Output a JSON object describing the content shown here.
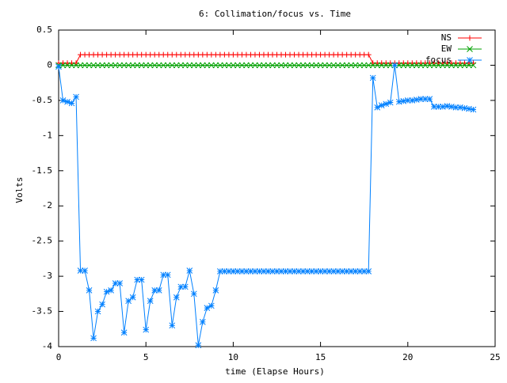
{
  "chart_data": {
    "type": "line",
    "title": "6: Collimation/focus vs. Time",
    "xlabel": "time (Elapse Hours)",
    "ylabel": "Volts",
    "x": [
      0,
      0.25,
      0.5,
      0.75,
      1,
      1.25,
      1.5,
      1.75,
      2,
      2.25,
      2.5,
      2.75,
      3,
      3.25,
      3.5,
      3.75,
      4,
      4.25,
      4.5,
      4.75,
      5,
      5.25,
      5.5,
      5.75,
      6,
      6.25,
      6.5,
      6.75,
      7,
      7.25,
      7.5,
      7.75,
      8,
      8.25,
      8.5,
      8.75,
      9,
      9.25,
      9.5,
      9.75,
      10,
      10.25,
      10.5,
      10.75,
      11,
      11.25,
      11.5,
      11.75,
      12,
      12.25,
      12.5,
      12.75,
      13,
      13.25,
      13.5,
      13.75,
      14,
      14.25,
      14.5,
      14.75,
      15,
      15.25,
      15.5,
      15.75,
      16,
      16.25,
      16.5,
      16.75,
      17,
      17.25,
      17.5,
      17.75,
      18,
      18.25,
      18.5,
      18.75,
      19,
      19.25,
      19.5,
      19.75,
      20,
      20.25,
      20.5,
      20.75,
      21,
      21.25,
      21.5,
      21.75,
      22,
      22.25,
      22.5,
      22.75,
      23,
      23.25,
      23.5,
      23.75
    ],
    "series": [
      {
        "name": "NS",
        "color": "#ff0000",
        "marker": "plus",
        "values": [
          0.03,
          0.03,
          0.03,
          0.03,
          0.03,
          0.15,
          0.15,
          0.15,
          0.15,
          0.15,
          0.15,
          0.15,
          0.15,
          0.15,
          0.15,
          0.15,
          0.15,
          0.15,
          0.15,
          0.15,
          0.15,
          0.15,
          0.15,
          0.15,
          0.15,
          0.15,
          0.15,
          0.15,
          0.15,
          0.15,
          0.15,
          0.15,
          0.15,
          0.15,
          0.15,
          0.15,
          0.15,
          0.15,
          0.15,
          0.15,
          0.15,
          0.15,
          0.15,
          0.15,
          0.15,
          0.15,
          0.15,
          0.15,
          0.15,
          0.15,
          0.15,
          0.15,
          0.15,
          0.15,
          0.15,
          0.15,
          0.15,
          0.15,
          0.15,
          0.15,
          0.15,
          0.15,
          0.15,
          0.15,
          0.15,
          0.15,
          0.15,
          0.15,
          0.15,
          0.15,
          0.15,
          0.15,
          0.03,
          0.03,
          0.03,
          0.03,
          0.03,
          0.03,
          0.03,
          0.03,
          0.03,
          0.03,
          0.03,
          0.03,
          0.03,
          0.03,
          0.03,
          0.03,
          0.03,
          0.03,
          0.03,
          0.03,
          0.03,
          0.03,
          0.03,
          0.03
        ]
      },
      {
        "name": "EW",
        "color": "#00a000",
        "marker": "cross",
        "values": [
          0,
          0,
          0,
          0,
          0,
          0,
          0,
          0,
          0,
          0,
          0,
          0,
          0,
          0,
          0,
          0,
          0,
          0,
          0,
          0,
          0,
          0,
          0,
          0,
          0,
          0,
          0,
          0,
          0,
          0,
          0,
          0,
          0,
          0,
          0,
          0,
          0,
          0,
          0,
          0,
          0,
          0,
          0,
          0,
          0,
          0,
          0,
          0,
          0,
          0,
          0,
          0,
          0,
          0,
          0,
          0,
          0,
          0,
          0,
          0,
          0,
          0,
          0,
          0,
          0,
          0,
          0,
          0,
          0,
          0,
          0,
          0,
          0,
          0,
          0,
          0,
          0,
          0,
          0,
          0,
          0,
          0,
          0,
          0,
          0,
          0,
          0,
          0,
          0,
          0,
          0,
          0,
          0,
          0,
          0,
          0
        ]
      },
      {
        "name": "focus",
        "color": "#0080ff",
        "marker": "star",
        "values": [
          -0.02,
          -0.5,
          -0.52,
          -0.54,
          -0.45,
          -2.92,
          -2.92,
          -3.2,
          -3.88,
          -3.5,
          -3.4,
          -3.22,
          -3.2,
          -3.1,
          -3.1,
          -3.8,
          -3.35,
          -3.3,
          -3.05,
          -3.05,
          -3.76,
          -3.35,
          -3.2,
          -3.2,
          -2.98,
          -2.98,
          -3.7,
          -3.3,
          -3.15,
          -3.15,
          -2.92,
          -3.25,
          -3.98,
          -3.65,
          -3.45,
          -3.42,
          -3.2,
          -2.93,
          -2.93,
          -2.93,
          -2.93,
          -2.93,
          -2.93,
          -2.93,
          -2.93,
          -2.93,
          -2.93,
          -2.93,
          -2.93,
          -2.93,
          -2.93,
          -2.93,
          -2.93,
          -2.93,
          -2.93,
          -2.93,
          -2.93,
          -2.93,
          -2.93,
          -2.93,
          -2.93,
          -2.93,
          -2.93,
          -2.93,
          -2.93,
          -2.93,
          -2.93,
          -2.93,
          -2.93,
          -2.93,
          -2.93,
          -2.93,
          -0.18,
          -0.6,
          -0.57,
          -0.55,
          -0.53,
          0,
          -0.52,
          -0.51,
          -0.5,
          -0.5,
          -0.49,
          -0.48,
          -0.48,
          -0.48,
          -0.59,
          -0.59,
          -0.59,
          -0.58,
          -0.59,
          -0.6,
          -0.6,
          -0.61,
          -0.62,
          -0.63
        ]
      }
    ],
    "xlim": [
      0,
      25
    ],
    "xticks": [
      0,
      5,
      10,
      15,
      20,
      25
    ],
    "ylim": [
      -4,
      0.5
    ],
    "yticks": [
      0.5,
      0,
      -0.5,
      -1,
      -1.5,
      -2,
      -2.5,
      -3,
      -3.5,
      -4
    ],
    "legend": "top-right",
    "grid": false
  }
}
